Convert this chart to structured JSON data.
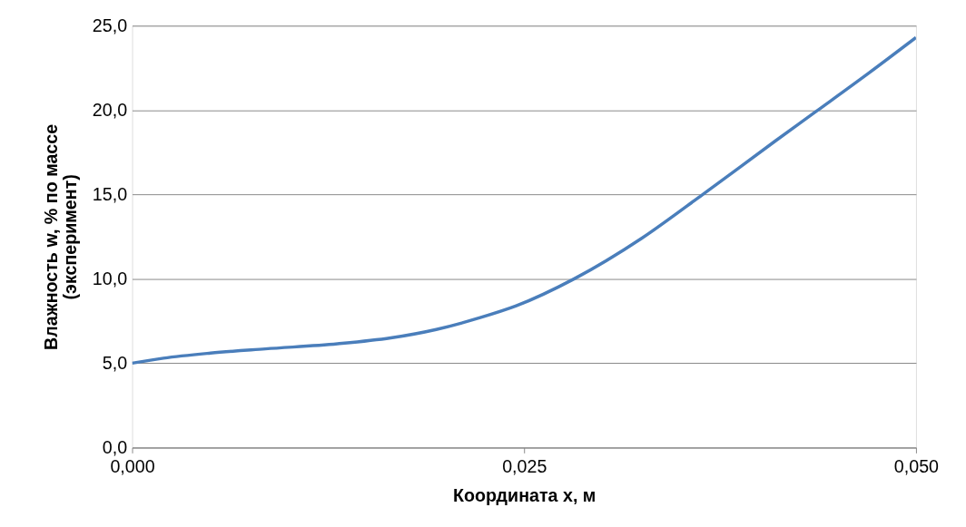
{
  "chart_data": {
    "type": "line",
    "xlabel": "Координата x, м",
    "ylabel": "Влажность w, % по массе\n(эксперимент)",
    "x": [
      0.0,
      0.002,
      0.005,
      0.0085,
      0.0131,
      0.0165,
      0.0194,
      0.0222,
      0.0245,
      0.0282,
      0.0325,
      0.0364,
      0.041,
      0.0436,
      0.047,
      0.05
    ],
    "series": [
      {
        "color": "#4a7ebb",
        "values": [
          5.0,
          5.3,
          5.6,
          5.85,
          6.15,
          6.5,
          7.0,
          7.7,
          8.4,
          10.0,
          12.4,
          15.0,
          18.15,
          19.9,
          22.2,
          24.3
        ]
      }
    ],
    "xlim": [
      0,
      0.05
    ],
    "ylim": [
      0,
      25
    ],
    "xticks": [
      {
        "value": 0,
        "label": "0,000"
      },
      {
        "value": 0.025,
        "label": "0,025"
      },
      {
        "value": 0.05,
        "label": "0,050"
      }
    ],
    "yticks": [
      {
        "value": 0,
        "label": "0,0"
      },
      {
        "value": 5,
        "label": "5,0"
      },
      {
        "value": 10,
        "label": "10,0"
      },
      {
        "value": 15,
        "label": "15,0"
      },
      {
        "value": 20,
        "label": "20,0"
      },
      {
        "value": 25,
        "label": "25,0"
      }
    ],
    "grid": "y",
    "marker": "none",
    "line_style": "solid"
  }
}
